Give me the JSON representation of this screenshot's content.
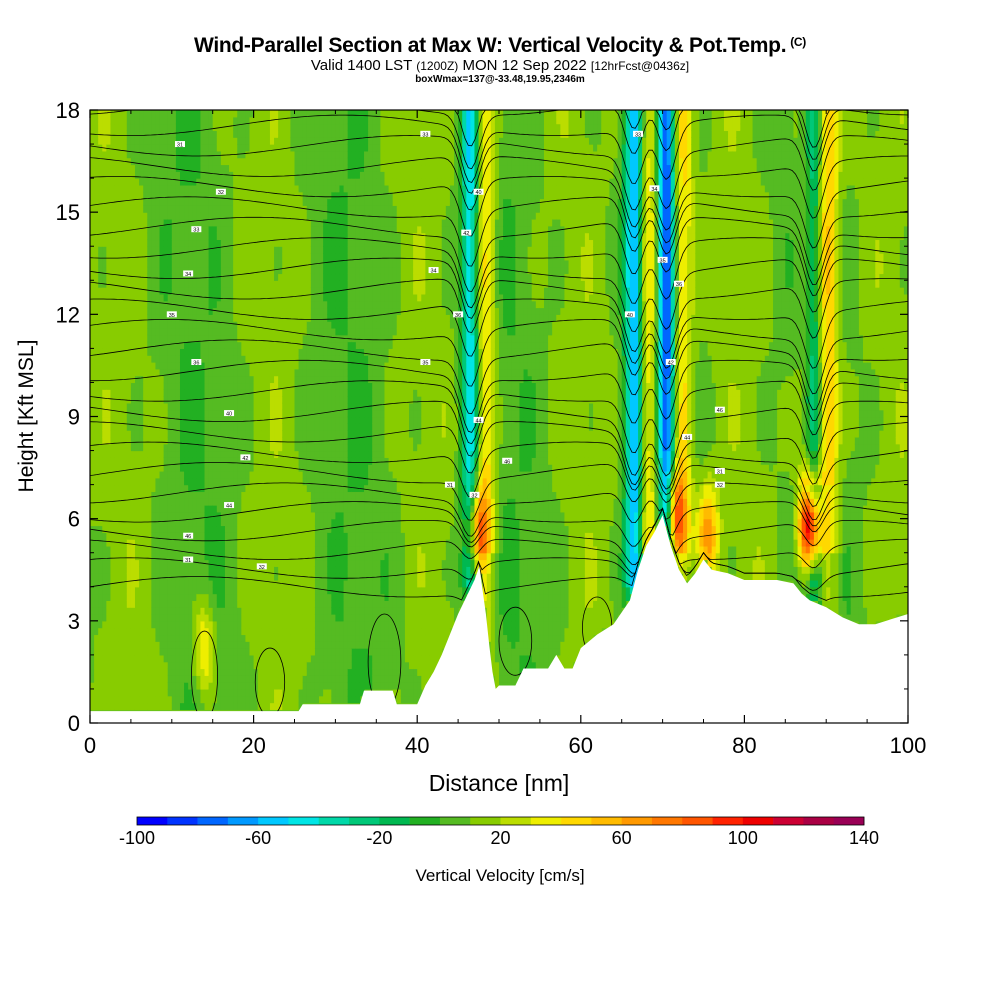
{
  "title": {
    "main": "Wind-Parallel Section at Max W: Vertical Velocity & Pot.Temp.",
    "copyright": "(C)",
    "valid": "Valid 1400 LST",
    "valid_utc": "(1200Z)",
    "date": "MON 12 Sep 2022",
    "forecast": "[12hrFcst@0436z]",
    "box_info": "boxWmax=137@-33.48,19.95,2346m"
  },
  "chart_data": {
    "type": "heatmap",
    "xlabel": "Distance [nm]",
    "ylabel": "Height [Kft MSL]",
    "xlim": [
      0,
      100
    ],
    "ylim": [
      0,
      18
    ],
    "x_ticks": [
      0,
      20,
      40,
      60,
      80,
      100
    ],
    "y_ticks": [
      0,
      3,
      6,
      9,
      12,
      15,
      18
    ],
    "colorbar": {
      "label": "Vertical Velocity [cm/s]",
      "tick_labels": [
        -100,
        -60,
        -20,
        20,
        60,
        100,
        140
      ],
      "min": -100,
      "max": 140,
      "step": 10,
      "colors": [
        "#0000ff",
        "#0033ff",
        "#0066ff",
        "#0099ff",
        "#00c8ff",
        "#00e5e5",
        "#00d8a8",
        "#00c878",
        "#00b850",
        "#22b022",
        "#55bb22",
        "#88cc00",
        "#bbdd00",
        "#eeee00",
        "#ffd800",
        "#ffbb00",
        "#ff9900",
        "#ff7700",
        "#ff5500",
        "#ff2200",
        "#ee0000",
        "#cc0033",
        "#aa0044",
        "#990055"
      ]
    },
    "terrain_top_kft": [
      [
        0,
        0.35
      ],
      [
        25.5,
        0.35
      ],
      [
        26,
        0.55
      ],
      [
        33,
        0.55
      ],
      [
        33.5,
        0.95
      ],
      [
        37,
        0.95
      ],
      [
        37.5,
        0.55
      ],
      [
        40,
        0.55
      ],
      [
        41,
        1.1
      ],
      [
        42,
        1.5
      ],
      [
        43,
        2.0
      ],
      [
        44,
        2.6
      ],
      [
        45,
        3.2
      ],
      [
        46,
        3.7
      ],
      [
        47,
        4.2
      ],
      [
        47.6,
        4.6
      ],
      [
        48,
        3.9
      ],
      [
        48.4,
        3.2
      ],
      [
        48.8,
        2.3
      ],
      [
        49.2,
        1.5
      ],
      [
        49.6,
        1.0
      ],
      [
        50,
        1.1
      ],
      [
        52,
        1.1
      ],
      [
        53,
        1.6
      ],
      [
        56,
        1.6
      ],
      [
        57,
        2.0
      ],
      [
        58,
        1.6
      ],
      [
        59,
        1.6
      ],
      [
        60,
        2.2
      ],
      [
        62,
        2.6
      ],
      [
        64,
        2.9
      ],
      [
        66,
        3.6
      ],
      [
        67,
        4.5
      ],
      [
        68,
        5.2
      ],
      [
        69,
        5.6
      ],
      [
        70,
        6.1
      ],
      [
        71,
        5.2
      ],
      [
        72,
        4.5
      ],
      [
        73,
        4.1
      ],
      [
        74,
        4.4
      ],
      [
        75,
        4.8
      ],
      [
        76,
        4.5
      ],
      [
        78,
        4.4
      ],
      [
        80,
        4.2
      ],
      [
        84,
        4.2
      ],
      [
        86,
        4.1
      ],
      [
        87,
        3.8
      ],
      [
        88,
        3.6
      ],
      [
        90,
        3.4
      ],
      [
        92,
        3.1
      ],
      [
        94,
        2.9
      ],
      [
        96,
        2.9
      ],
      [
        100,
        3.2
      ]
    ],
    "updraft_cores": [
      {
        "x": 47.3,
        "y": 5.6,
        "w": 65
      },
      {
        "x": 71.4,
        "y": 6.0,
        "w": 85
      },
      {
        "x": 88.0,
        "y": 5.8,
        "w": 137
      },
      {
        "x": 75.5,
        "y": 5.6,
        "w": 55
      },
      {
        "x": 14.0,
        "y": 2.2,
        "w": 40
      }
    ],
    "downdraft_bands": [
      {
        "x": 46.5,
        "w": -60
      },
      {
        "x": 70.5,
        "w": -90
      },
      {
        "x": 88.5,
        "w": -55
      },
      {
        "x": 66.5,
        "w": -70
      }
    ],
    "theta_contour_labels": [
      "31",
      "32",
      "33",
      "34",
      "35",
      "36",
      "40",
      "42",
      "44",
      "46"
    ],
    "grid": false,
    "legend": "bottom"
  }
}
